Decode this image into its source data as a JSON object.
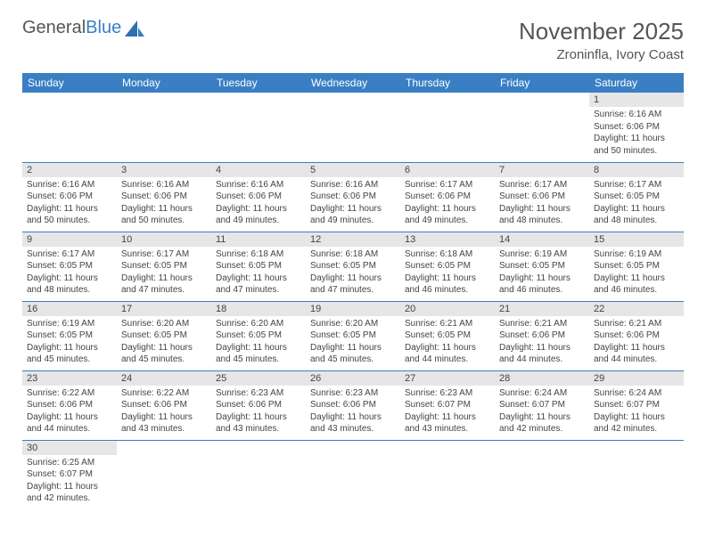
{
  "logo": {
    "part1": "General",
    "part2": "Blue"
  },
  "title": "November 2025",
  "location": "Zroninfla, Ivory Coast",
  "colors": {
    "header_bg": "#3a7fc4",
    "header_fg": "#ffffff",
    "daynum_bg": "#e6e6e6",
    "text": "#444444",
    "border": "#3a7fc4"
  },
  "days_of_week": [
    "Sunday",
    "Monday",
    "Tuesday",
    "Wednesday",
    "Thursday",
    "Friday",
    "Saturday"
  ],
  "weeks": [
    [
      null,
      null,
      null,
      null,
      null,
      null,
      {
        "n": "1",
        "sr": "6:16 AM",
        "ss": "6:06 PM",
        "dl": "11 hours and 50 minutes."
      }
    ],
    [
      {
        "n": "2",
        "sr": "6:16 AM",
        "ss": "6:06 PM",
        "dl": "11 hours and 50 minutes."
      },
      {
        "n": "3",
        "sr": "6:16 AM",
        "ss": "6:06 PM",
        "dl": "11 hours and 50 minutes."
      },
      {
        "n": "4",
        "sr": "6:16 AM",
        "ss": "6:06 PM",
        "dl": "11 hours and 49 minutes."
      },
      {
        "n": "5",
        "sr": "6:16 AM",
        "ss": "6:06 PM",
        "dl": "11 hours and 49 minutes."
      },
      {
        "n": "6",
        "sr": "6:17 AM",
        "ss": "6:06 PM",
        "dl": "11 hours and 49 minutes."
      },
      {
        "n": "7",
        "sr": "6:17 AM",
        "ss": "6:06 PM",
        "dl": "11 hours and 48 minutes."
      },
      {
        "n": "8",
        "sr": "6:17 AM",
        "ss": "6:05 PM",
        "dl": "11 hours and 48 minutes."
      }
    ],
    [
      {
        "n": "9",
        "sr": "6:17 AM",
        "ss": "6:05 PM",
        "dl": "11 hours and 48 minutes."
      },
      {
        "n": "10",
        "sr": "6:17 AM",
        "ss": "6:05 PM",
        "dl": "11 hours and 47 minutes."
      },
      {
        "n": "11",
        "sr": "6:18 AM",
        "ss": "6:05 PM",
        "dl": "11 hours and 47 minutes."
      },
      {
        "n": "12",
        "sr": "6:18 AM",
        "ss": "6:05 PM",
        "dl": "11 hours and 47 minutes."
      },
      {
        "n": "13",
        "sr": "6:18 AM",
        "ss": "6:05 PM",
        "dl": "11 hours and 46 minutes."
      },
      {
        "n": "14",
        "sr": "6:19 AM",
        "ss": "6:05 PM",
        "dl": "11 hours and 46 minutes."
      },
      {
        "n": "15",
        "sr": "6:19 AM",
        "ss": "6:05 PM",
        "dl": "11 hours and 46 minutes."
      }
    ],
    [
      {
        "n": "16",
        "sr": "6:19 AM",
        "ss": "6:05 PM",
        "dl": "11 hours and 45 minutes."
      },
      {
        "n": "17",
        "sr": "6:20 AM",
        "ss": "6:05 PM",
        "dl": "11 hours and 45 minutes."
      },
      {
        "n": "18",
        "sr": "6:20 AM",
        "ss": "6:05 PM",
        "dl": "11 hours and 45 minutes."
      },
      {
        "n": "19",
        "sr": "6:20 AM",
        "ss": "6:05 PM",
        "dl": "11 hours and 45 minutes."
      },
      {
        "n": "20",
        "sr": "6:21 AM",
        "ss": "6:05 PM",
        "dl": "11 hours and 44 minutes."
      },
      {
        "n": "21",
        "sr": "6:21 AM",
        "ss": "6:06 PM",
        "dl": "11 hours and 44 minutes."
      },
      {
        "n": "22",
        "sr": "6:21 AM",
        "ss": "6:06 PM",
        "dl": "11 hours and 44 minutes."
      }
    ],
    [
      {
        "n": "23",
        "sr": "6:22 AM",
        "ss": "6:06 PM",
        "dl": "11 hours and 44 minutes."
      },
      {
        "n": "24",
        "sr": "6:22 AM",
        "ss": "6:06 PM",
        "dl": "11 hours and 43 minutes."
      },
      {
        "n": "25",
        "sr": "6:23 AM",
        "ss": "6:06 PM",
        "dl": "11 hours and 43 minutes."
      },
      {
        "n": "26",
        "sr": "6:23 AM",
        "ss": "6:06 PM",
        "dl": "11 hours and 43 minutes."
      },
      {
        "n": "27",
        "sr": "6:23 AM",
        "ss": "6:07 PM",
        "dl": "11 hours and 43 minutes."
      },
      {
        "n": "28",
        "sr": "6:24 AM",
        "ss": "6:07 PM",
        "dl": "11 hours and 42 minutes."
      },
      {
        "n": "29",
        "sr": "6:24 AM",
        "ss": "6:07 PM",
        "dl": "11 hours and 42 minutes."
      }
    ],
    [
      {
        "n": "30",
        "sr": "6:25 AM",
        "ss": "6:07 PM",
        "dl": "11 hours and 42 minutes."
      },
      null,
      null,
      null,
      null,
      null,
      null
    ]
  ],
  "labels": {
    "sunrise": "Sunrise: ",
    "sunset": "Sunset: ",
    "daylight": "Daylight: "
  }
}
